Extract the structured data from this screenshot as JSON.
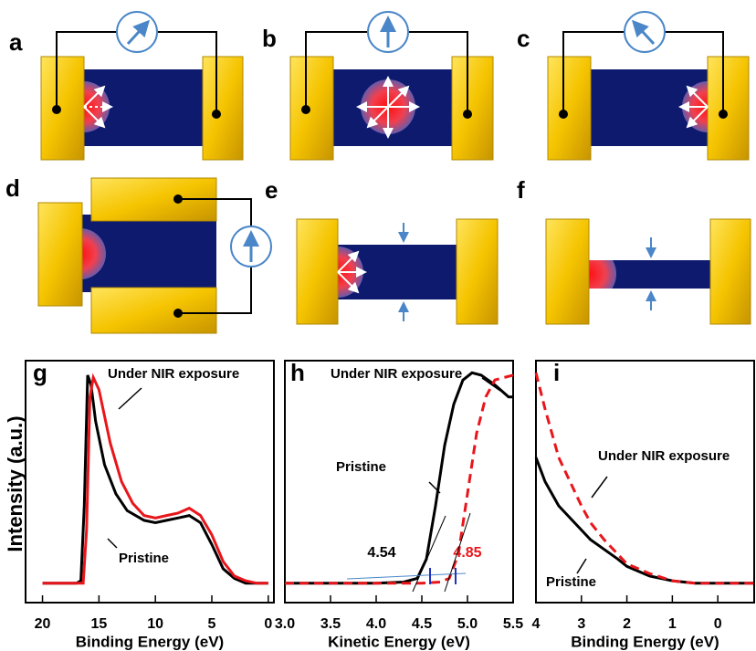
{
  "panels": [
    "a",
    "b",
    "c",
    "d",
    "e",
    "f"
  ],
  "y_label": "Intensity (a.u.)",
  "chart_data": [
    {
      "type": "line",
      "panel": "g",
      "xlabel": "Binding Energy (eV)",
      "xlim": [
        21.5,
        -0.5
      ],
      "ylim": [
        0,
        100
      ],
      "xticks": [
        20,
        15,
        10,
        5,
        0
      ],
      "series": [
        {
          "name": "Pristine",
          "color": "#000000",
          "dashed": false,
          "x": [
            20,
            18,
            17,
            16.6,
            16.3,
            16,
            15.7,
            15.3,
            14.5,
            13.5,
            12.5,
            11,
            10,
            9,
            8,
            7,
            6,
            5,
            4,
            3,
            2,
            1,
            0
          ],
          "values": [
            8,
            8,
            8,
            9,
            40,
            94,
            90,
            75,
            57,
            45,
            38,
            34,
            33,
            34,
            35,
            36,
            33,
            24,
            14,
            10,
            8,
            8,
            8
          ]
        },
        {
          "name": "Under NIR exposure",
          "color": "#e8161b",
          "dashed": false,
          "x": [
            20,
            18,
            17,
            16.4,
            16.1,
            15.8,
            15.5,
            15,
            14,
            13,
            12,
            11,
            10,
            9,
            8,
            7,
            6,
            5,
            4,
            3,
            2,
            1,
            0
          ],
          "values": [
            8,
            8,
            8,
            8,
            30,
            85,
            93,
            88,
            66,
            50,
            41,
            36,
            35,
            36,
            37,
            39,
            36,
            28,
            17,
            11,
            9,
            8,
            8
          ]
        }
      ]
    },
    {
      "type": "line",
      "panel": "h",
      "xlabel": "Kinetic Energy (eV)",
      "xlim": [
        3,
        5.5
      ],
      "ylim": [
        0,
        100
      ],
      "xticks": [
        {
          "value": 3,
          "label": "3.0"
        },
        3.5,
        {
          "value": 4,
          "label": "4.0"
        },
        4.5,
        {
          "value": 5,
          "label": "5.0"
        },
        5.5
      ],
      "annotations": [
        "4.54",
        "4.85"
      ],
      "series": [
        {
          "name": "Pristine",
          "color": "#000000",
          "dashed": false,
          "x": [
            3,
            3.5,
            4,
            4.3,
            4.45,
            4.55,
            4.65,
            4.75,
            4.85,
            4.95,
            5.05,
            5.15,
            5.3,
            5.45,
            5.5
          ],
          "values": [
            8,
            8,
            8,
            8.5,
            10,
            18,
            40,
            65,
            82,
            92,
            95,
            94,
            90,
            85,
            85
          ]
        },
        {
          "name": "Under NIR exposure",
          "color": "#e8161b",
          "dashed": true,
          "x": [
            3,
            3.5,
            4,
            4.5,
            4.7,
            4.8,
            4.9,
            5,
            5.1,
            5.2,
            5.3,
            5.4,
            5.5
          ],
          "values": [
            8,
            8,
            8,
            8,
            8.5,
            10,
            20,
            45,
            70,
            85,
            92,
            93,
            94
          ]
        }
      ]
    },
    {
      "type": "line",
      "panel": "i",
      "xlabel": "Binding Energy (eV)",
      "xlim": [
        4,
        -0.8
      ],
      "ylim": [
        0,
        100
      ],
      "xticks": [
        4,
        3,
        2,
        1,
        0
      ],
      "series": [
        {
          "name": "Pristine",
          "color": "#000000",
          "dashed": false,
          "x": [
            4,
            3.8,
            3.5,
            3.2,
            3,
            2.8,
            2.5,
            2.2,
            2,
            1.5,
            1,
            0.5,
            0,
            -0.5,
            -0.8
          ],
          "values": [
            60,
            50,
            40,
            34,
            30,
            26,
            22,
            18,
            15,
            11,
            9,
            8,
            8,
            8,
            8
          ]
        },
        {
          "name": "Under NIR exposure",
          "color": "#e8161b",
          "dashed": true,
          "x": [
            4,
            3.8,
            3.5,
            3.2,
            3,
            2.8,
            2.5,
            2.2,
            2,
            1.5,
            1,
            0.5,
            0,
            -0.5,
            -0.8
          ],
          "values": [
            95,
            80,
            60,
            48,
            40,
            33,
            26,
            20,
            16,
            12,
            9,
            8,
            8,
            8,
            8
          ]
        }
      ]
    }
  ]
}
